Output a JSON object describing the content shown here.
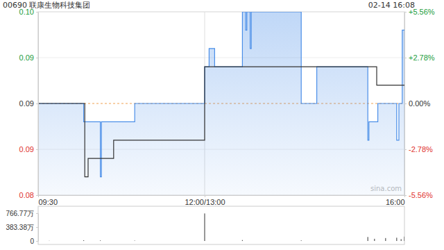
{
  "chart_data": [
    {
      "type": "line",
      "title": "00690 联康生物科技集团",
      "subtitle": "02-14 16:08",
      "annotations": [
        "sina.com"
      ],
      "xlim": [
        0,
        330
      ],
      "xticks": [
        {
          "value": 0,
          "label": "09:30"
        },
        {
          "value": 150,
          "label": "12:00/13:00"
        },
        {
          "value": 330,
          "label": "16:00"
        }
      ],
      "ylim": [
        0.085,
        0.095
      ],
      "yticks": [
        {
          "value": 0.095,
          "label": "0.10"
        },
        {
          "value": 0.0925,
          "label": "0.09"
        },
        {
          "value": 0.09,
          "label": "0.09"
        },
        {
          "value": 0.0875,
          "label": "0.09"
        },
        {
          "value": 0.085,
          "label": "0.08"
        }
      ],
      "y2lim": [
        -5.56,
        5.56
      ],
      "y2ticks": [
        {
          "value": 5.56,
          "label": "+5.56%"
        },
        {
          "value": 2.78,
          "label": "+2.78%"
        },
        {
          "value": 0,
          "label": "0.00%"
        },
        {
          "value": -2.78,
          "label": "-2.78%"
        },
        {
          "value": -5.56,
          "label": "-5.56%"
        }
      ],
      "grid": true,
      "series": [
        {
          "color": "#4a8ee8",
          "x": [
            0,
            41,
            56,
            57,
            87,
            150,
            154,
            159,
            184,
            187,
            188,
            191,
            192,
            237,
            251,
            297,
            298,
            306,
            323,
            325,
            328,
            330
          ],
          "values": [
            0.09,
            0.089,
            0.086,
            0.089,
            0.09,
            0.092,
            0.093,
            0.092,
            0.095,
            0.094,
            0.095,
            0.093,
            0.095,
            0.09,
            0.092,
            0.088,
            0.089,
            0.09,
            0.088,
            0.09,
            0.094,
            0.094
          ]
        },
        {
          "color": "#333333",
          "x": [
            0,
            42,
            45,
            68,
            150,
            305,
            330
          ],
          "values": [
            0.09,
            0.086,
            0.087,
            0.088,
            0.092,
            0.091,
            0.091
          ]
        }
      ]
    },
    {
      "type": "bar",
      "xlim": [
        0,
        330
      ],
      "ylim": [
        0,
        766.77
      ],
      "yticks": [
        {
          "value": 766.77,
          "label": "766.77万"
        },
        {
          "value": 383.38,
          "label": "383.38万"
        },
        0
      ],
      "color": "#555555",
      "x": [
        10,
        41,
        56,
        87,
        150,
        184,
        237,
        297,
        303,
        313,
        323,
        327,
        330
      ],
      "values": [
        5,
        20,
        15,
        10,
        760,
        25,
        15,
        110,
        60,
        80,
        90,
        50,
        120
      ]
    }
  ]
}
